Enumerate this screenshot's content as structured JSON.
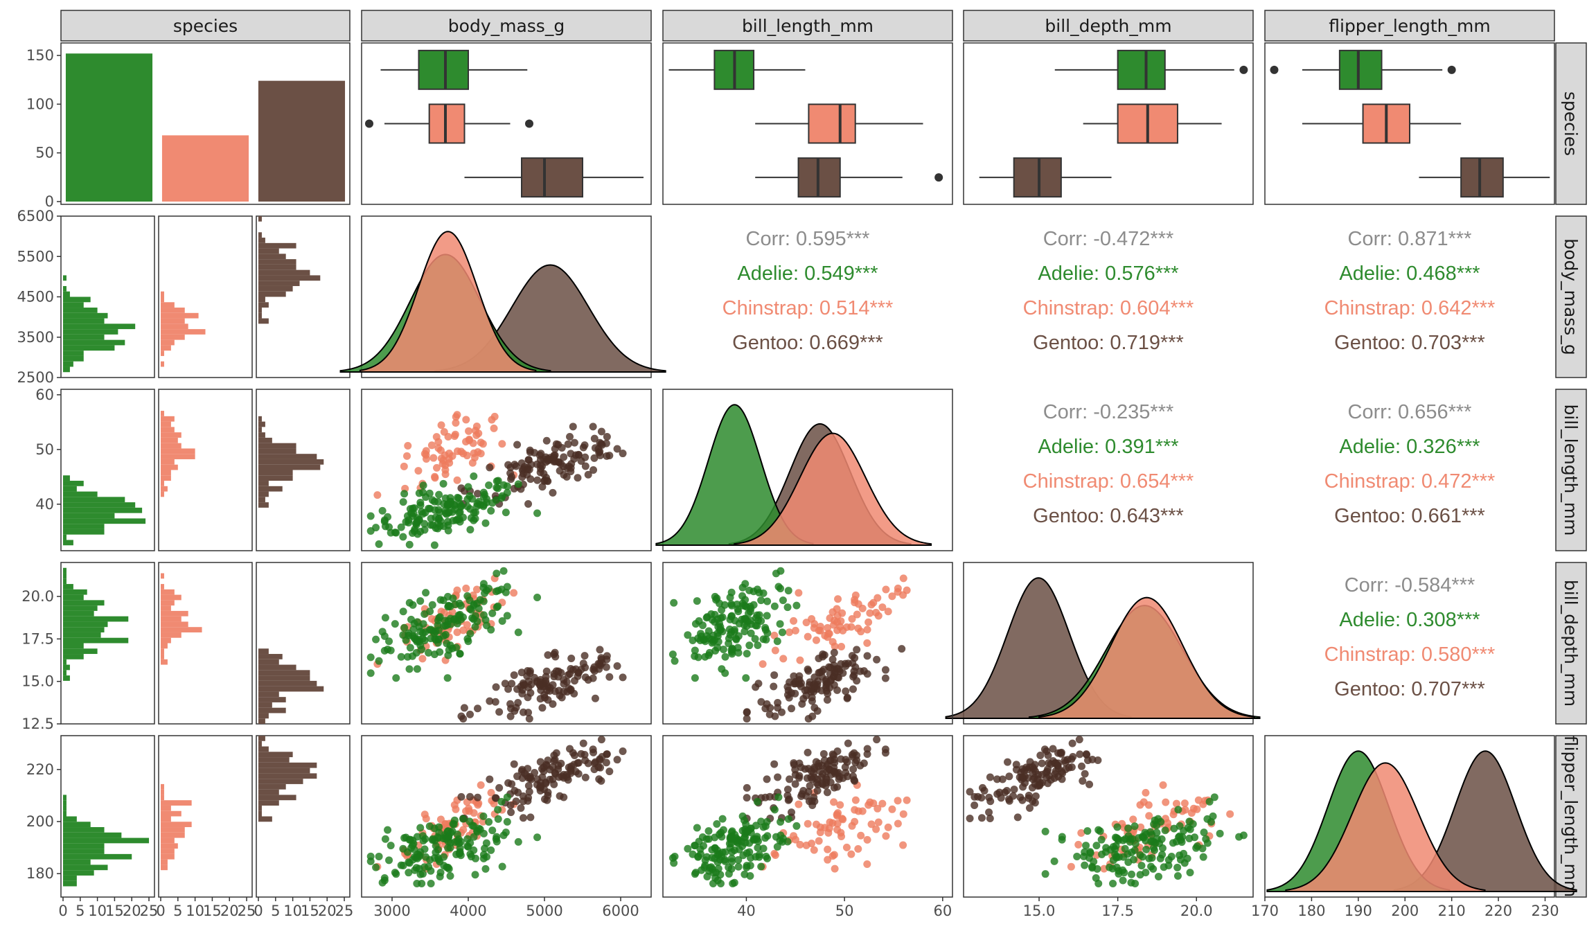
{
  "chart_data": {
    "type": "pairs",
    "variables": [
      "species",
      "body_mass_g",
      "bill_length_mm",
      "bill_depth_mm",
      "flipper_length_mm"
    ],
    "species": [
      "Adelie",
      "Chinstrap",
      "Gentoo"
    ],
    "colors": {
      "Adelie": "#2e8b2e",
      "Chinstrap": "#f08a72",
      "Gentoo": "#6b5045",
      "corr": "#8c8c8c"
    },
    "point_colors": {
      "Adelie": "#1a7a1a",
      "Chinstrap": "#ee7a5c",
      "Gentoo": "#4a2e24"
    },
    "counts": {
      "Adelie": 152,
      "Chinstrap": 68,
      "Gentoo": 124
    },
    "count_axis": {
      "ylim": [
        0,
        160
      ],
      "ticks": [
        0,
        50,
        100,
        150
      ]
    },
    "axes": {
      "body_mass_g": {
        "range": [
          2500,
          6500
        ],
        "x_range": [
          2600,
          6400
        ],
        "y_ticks": [
          2500,
          3500,
          4500,
          5500,
          6500
        ],
        "x_ticks": [
          3000,
          4000,
          5000,
          6000
        ]
      },
      "bill_length_mm": {
        "range": [
          31.5,
          61.0
        ],
        "x_range": [
          31.5,
          61.0
        ],
        "y_ticks": [
          40,
          50,
          60
        ],
        "x_ticks": [
          40,
          50,
          60
        ]
      },
      "bill_depth_mm": {
        "range": [
          12.5,
          22.0
        ],
        "x_range": [
          12.6,
          21.8
        ],
        "y_ticks": [
          12.5,
          15.0,
          17.5,
          20.0
        ],
        "x_ticks": [
          15.0,
          17.5,
          20.0
        ]
      },
      "flipper_length_mm": {
        "range": [
          171,
          233
        ],
        "x_range": [
          170,
          232
        ],
        "y_ticks": [
          180,
          200,
          220
        ],
        "x_ticks": [
          170,
          180,
          190,
          200,
          210,
          220,
          230
        ]
      }
    },
    "hist_count_axis": {
      "xlim": [
        0,
        26
      ],
      "ticks": [
        0,
        5,
        10,
        15,
        20,
        25
      ],
      "tick_labels": [
        "0",
        "5",
        "10",
        "15",
        "20",
        "25"
      ]
    },
    "stats": {
      "body_mass_g": {
        "Adelie": {
          "mean": 3700,
          "sd": 459
        },
        "Chinstrap": {
          "mean": 3733,
          "sd": 384
        },
        "Gentoo": {
          "mean": 5076,
          "sd": 504
        }
      },
      "bill_length_mm": {
        "Adelie": {
          "mean": 38.8,
          "sd": 2.66
        },
        "Chinstrap": {
          "mean": 48.8,
          "sd": 3.34
        },
        "Gentoo": {
          "mean": 47.5,
          "sd": 3.08
        }
      },
      "bill_depth_mm": {
        "Adelie": {
          "mean": 18.35,
          "sd": 1.22
        },
        "Chinstrap": {
          "mean": 18.42,
          "sd": 1.14
        },
        "Gentoo": {
          "mean": 14.98,
          "sd": 0.98
        }
      },
      "flipper_length_mm": {
        "Adelie": {
          "mean": 190.0,
          "sd": 6.5
        },
        "Chinstrap": {
          "mean": 195.8,
          "sd": 7.1
        },
        "Gentoo": {
          "mean": 217.2,
          "sd": 6.5
        }
      }
    },
    "boxplots": {
      "body_mass_g": {
        "Adelie": {
          "q1": 3350,
          "median": 3700,
          "q3": 4000,
          "lower": 2850,
          "upper": 4775,
          "outliers": []
        },
        "Chinstrap": {
          "q1": 3488,
          "median": 3700,
          "q3": 3950,
          "lower": 2900,
          "upper": 4550,
          "outliers": [
            2700,
            4800
          ]
        },
        "Gentoo": {
          "q1": 4700,
          "median": 5000,
          "q3": 5500,
          "lower": 3950,
          "upper": 6300,
          "outliers": []
        }
      },
      "bill_length_mm": {
        "Adelie": {
          "q1": 36.75,
          "median": 38.8,
          "q3": 40.75,
          "lower": 32.1,
          "upper": 46.0,
          "outliers": []
        },
        "Chinstrap": {
          "q1": 46.35,
          "median": 49.55,
          "q3": 51.1,
          "lower": 40.9,
          "upper": 58.0,
          "outliers": []
        },
        "Gentoo": {
          "q1": 45.3,
          "median": 47.3,
          "q3": 49.55,
          "lower": 40.9,
          "upper": 55.9,
          "outliers": [
            59.6
          ]
        }
      },
      "bill_depth_mm": {
        "Adelie": {
          "q1": 17.5,
          "median": 18.4,
          "q3": 19.0,
          "lower": 15.5,
          "upper": 21.2,
          "outliers": [
            21.5
          ]
        },
        "Chinstrap": {
          "q1": 17.5,
          "median": 18.45,
          "q3": 19.4,
          "lower": 16.4,
          "upper": 20.8,
          "outliers": []
        },
        "Gentoo": {
          "q1": 14.2,
          "median": 15.0,
          "q3": 15.7,
          "lower": 13.1,
          "upper": 17.3,
          "outliers": []
        }
      },
      "flipper_length_mm": {
        "Adelie": {
          "q1": 186,
          "median": 190,
          "q3": 195,
          "lower": 178,
          "upper": 208,
          "outliers": [
            172,
            210
          ]
        },
        "Chinstrap": {
          "q1": 191,
          "median": 196,
          "q3": 201,
          "lower": 178,
          "upper": 212,
          "outliers": []
        },
        "Gentoo": {
          "q1": 212,
          "median": 216,
          "q3": 221,
          "lower": 203,
          "upper": 231,
          "outliers": []
        }
      }
    },
    "correlations": [
      {
        "row": "body_mass_g",
        "col": "bill_length_mm",
        "lines": [
          "Corr: 0.595***",
          "Adelie: 0.549***",
          "Chinstrap: 0.514***",
          "Gentoo: 0.669***"
        ]
      },
      {
        "row": "body_mass_g",
        "col": "bill_depth_mm",
        "lines": [
          "Corr: -0.472***",
          "Adelie: 0.576***",
          "Chinstrap: 0.604***",
          "Gentoo: 0.719***"
        ]
      },
      {
        "row": "body_mass_g",
        "col": "flipper_length_mm",
        "lines": [
          "Corr: 0.871***",
          "Adelie: 0.468***",
          "Chinstrap: 0.642***",
          "Gentoo: 0.703***"
        ]
      },
      {
        "row": "bill_length_mm",
        "col": "bill_depth_mm",
        "lines": [
          "Corr: -0.235***",
          "Adelie: 0.391***",
          "Chinstrap: 0.654***",
          "Gentoo: 0.643***"
        ]
      },
      {
        "row": "bill_length_mm",
        "col": "flipper_length_mm",
        "lines": [
          "Corr: 0.656***",
          "Adelie: 0.326***",
          "Chinstrap: 0.472***",
          "Gentoo: 0.661***"
        ]
      },
      {
        "row": "bill_depth_mm",
        "col": "flipper_length_mm",
        "lines": [
          "Corr: -0.584***",
          "Adelie: 0.308***",
          "Chinstrap: 0.580***",
          "Gentoo: 0.707***"
        ]
      }
    ],
    "species_corr": {
      "body_mass_g|bill_length_mm": {
        "Adelie": 0.549,
        "Chinstrap": 0.514,
        "Gentoo": 0.669
      },
      "body_mass_g|bill_depth_mm": {
        "Adelie": 0.576,
        "Chinstrap": 0.604,
        "Gentoo": 0.719
      },
      "body_mass_g|flipper_length_mm": {
        "Adelie": 0.468,
        "Chinstrap": 0.642,
        "Gentoo": 0.703
      },
      "bill_length_mm|bill_depth_mm": {
        "Adelie": 0.391,
        "Chinstrap": 0.654,
        "Gentoo": 0.643
      },
      "bill_length_mm|flipper_length_mm": {
        "Adelie": 0.326,
        "Chinstrap": 0.472,
        "Gentoo": 0.661
      },
      "bill_depth_mm|flipper_length_mm": {
        "Adelie": 0.308,
        "Chinstrap": 0.58,
        "Gentoo": 0.707
      }
    }
  }
}
